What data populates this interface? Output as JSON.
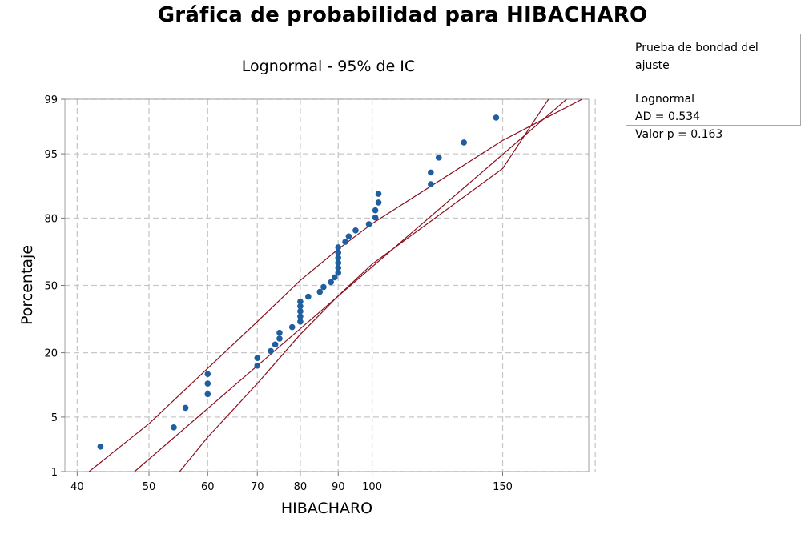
{
  "chart_data": {
    "type": "scatter",
    "title": "Gráfica de probabilidad para HIBACHARO",
    "subtitle": "Lognormal - 95% de IC",
    "xlabel": "HIBACHARO",
    "ylabel": "Porcentaje",
    "x_scale": "log",
    "y_scale": "lognormal-probability",
    "xlim": [
      38.5,
      196
    ],
    "ylim": [
      1,
      99
    ],
    "x_ticks": [
      40,
      50,
      60,
      70,
      80,
      90,
      100,
      150
    ],
    "x_gridlines": [
      40,
      50,
      60,
      70,
      80,
      90,
      100,
      150,
      200
    ],
    "y_ticks": [
      1,
      5,
      20,
      50,
      80,
      95,
      99
    ],
    "grid": true,
    "colors": {
      "points": "#1f5fa0",
      "lines": "#8b0f1f",
      "grid": "#c8c8c8"
    },
    "points": [
      {
        "x": 43,
        "y": 2.2
      },
      {
        "x": 54,
        "y": 3.8
      },
      {
        "x": 56,
        "y": 6.3
      },
      {
        "x": 60,
        "y": 8.7
      },
      {
        "x": 60,
        "y": 11.0
      },
      {
        "x": 60,
        "y": 13.4
      },
      {
        "x": 70,
        "y": 15.8
      },
      {
        "x": 70,
        "y": 18.2
      },
      {
        "x": 73,
        "y": 20.6
      },
      {
        "x": 74,
        "y": 23.0
      },
      {
        "x": 75,
        "y": 25.3
      },
      {
        "x": 75,
        "y": 27.7
      },
      {
        "x": 78,
        "y": 30.1
      },
      {
        "x": 80,
        "y": 32.5
      },
      {
        "x": 80,
        "y": 34.9
      },
      {
        "x": 80,
        "y": 37.3
      },
      {
        "x": 80,
        "y": 39.7
      },
      {
        "x": 80,
        "y": 42.0
      },
      {
        "x": 82,
        "y": 44.4
      },
      {
        "x": 85,
        "y": 46.8
      },
      {
        "x": 86,
        "y": 49.2
      },
      {
        "x": 88,
        "y": 51.6
      },
      {
        "x": 89,
        "y": 54.0
      },
      {
        "x": 90,
        "y": 56.3
      },
      {
        "x": 90,
        "y": 58.7
      },
      {
        "x": 90,
        "y": 61.1
      },
      {
        "x": 90,
        "y": 63.5
      },
      {
        "x": 90,
        "y": 65.9
      },
      {
        "x": 90,
        "y": 68.3
      },
      {
        "x": 92,
        "y": 70.7
      },
      {
        "x": 93,
        "y": 73.0
      },
      {
        "x": 95,
        "y": 75.4
      },
      {
        "x": 99,
        "y": 77.8
      },
      {
        "x": 101,
        "y": 80.2
      },
      {
        "x": 101,
        "y": 82.6
      },
      {
        "x": 102,
        "y": 85.0
      },
      {
        "x": 102,
        "y": 87.4
      },
      {
        "x": 120,
        "y": 89.7
      },
      {
        "x": 120,
        "y": 92.1
      },
      {
        "x": 123,
        "y": 94.5
      },
      {
        "x": 133,
        "y": 96.3
      },
      {
        "x": 147,
        "y": 98.2
      }
    ],
    "fit_line": {
      "x_at_1pct": 47.8,
      "x_at_99pct": 183
    },
    "ci_lower": [
      [
        41.5,
        1
      ],
      [
        50,
        4.2
      ],
      [
        60,
        15.0
      ],
      [
        70,
        32.5
      ],
      [
        80,
        52.5
      ],
      [
        90,
        67.5
      ],
      [
        100,
        78.0
      ],
      [
        150,
        96.5
      ],
      [
        192,
        99
      ]
    ],
    "ci_upper": [
      [
        55,
        1
      ],
      [
        60,
        2.9
      ],
      [
        70,
        11.0
      ],
      [
        80,
        27.0
      ],
      [
        90,
        44.8
      ],
      [
        100,
        60.5
      ],
      [
        150,
        92.8
      ],
      [
        173,
        99
      ]
    ]
  },
  "goodness_of_fit": {
    "header": "Prueba de bondad del ajuste",
    "distribution": "Lognormal",
    "ad": "AD = 0.534",
    "pvalue": "Valor p = 0.163"
  }
}
